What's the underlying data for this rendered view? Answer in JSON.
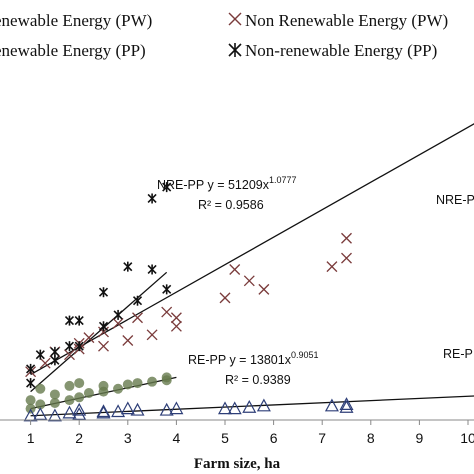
{
  "chart_data": {
    "type": "scatter",
    "xlabel": "Farm size, ha",
    "ylabel": "",
    "xlim": [
      0,
      10.2
    ],
    "ylim": [
      0,
      1250000
    ],
    "xticks": [
      "1",
      "2",
      "3",
      "4",
      "5",
      "6",
      "7",
      "8",
      "9",
      "10"
    ],
    "legend": [
      {
        "label": "Renewable Energy (PW)",
        "marker": "circle",
        "visible_label": "enewable Energy (PW)"
      },
      {
        "label": "Non Renewable Energy (PW)",
        "marker": "x"
      },
      {
        "label": "Renewable Energy (PP)",
        "marker": "triangle",
        "visible_label": "enewable Energy (PP)"
      },
      {
        "label": "Non-renewable Energy (PP)",
        "marker": "asterisk"
      }
    ],
    "annotations": {
      "nre_pp_eq": "NRE-PP  y = 51209x",
      "nre_pp_exp": "1.0777",
      "nre_pp_r2": "R² = 0.9586",
      "nre_pw_label": "NRE-P",
      "re_pp_eq": "RE-PP  y = 13801x",
      "re_pp_exp": "0.9051",
      "re_pp_r2": "R² = 0.9389",
      "re_pw_label": "RE-P"
    },
    "series": [
      {
        "name": "Non Renewable Energy (PW)",
        "marker": "x",
        "color": "#7a3b3b",
        "points": [
          [
            1.0,
            170000
          ],
          [
            1.3,
            200000
          ],
          [
            1.5,
            240000
          ],
          [
            1.8,
            230000
          ],
          [
            2.0,
            250000
          ],
          [
            2.0,
            270000
          ],
          [
            2.2,
            290000
          ],
          [
            2.5,
            260000
          ],
          [
            2.5,
            310000
          ],
          [
            2.8,
            340000
          ],
          [
            3.0,
            280000
          ],
          [
            3.2,
            360000
          ],
          [
            3.5,
            300000
          ],
          [
            3.8,
            380000
          ],
          [
            4.0,
            360000
          ],
          [
            4.0,
            330000
          ],
          [
            5.0,
            430000
          ],
          [
            5.2,
            530000
          ],
          [
            5.5,
            490000
          ],
          [
            5.8,
            460000
          ],
          [
            7.2,
            540000
          ],
          [
            7.5,
            570000
          ],
          [
            7.5,
            640000
          ]
        ]
      },
      {
        "name": "Non-renewable Energy (PP)",
        "marker": "asterisk",
        "color": "#111111",
        "points": [
          [
            1.0,
            130000
          ],
          [
            1.0,
            180000
          ],
          [
            1.2,
            230000
          ],
          [
            1.5,
            210000
          ],
          [
            1.5,
            240000
          ],
          [
            1.8,
            260000
          ],
          [
            1.8,
            350000
          ],
          [
            2.0,
            350000
          ],
          [
            2.0,
            260000
          ],
          [
            2.5,
            330000
          ],
          [
            2.5,
            450000
          ],
          [
            2.8,
            370000
          ],
          [
            3.0,
            540000
          ],
          [
            3.2,
            420000
          ],
          [
            3.5,
            530000
          ],
          [
            3.5,
            780000
          ],
          [
            3.8,
            820000
          ],
          [
            3.8,
            460000
          ]
        ]
      },
      {
        "name": "Renewable Energy (PW)",
        "marker": "circle",
        "color": "#667a4e",
        "points": [
          [
            1.0,
            40000
          ],
          [
            1.0,
            70000
          ],
          [
            1.2,
            55000
          ],
          [
            1.2,
            110000
          ],
          [
            1.5,
            60000
          ],
          [
            1.5,
            90000
          ],
          [
            1.8,
            70000
          ],
          [
            1.8,
            120000
          ],
          [
            2.0,
            80000
          ],
          [
            2.0,
            130000
          ],
          [
            2.2,
            95000
          ],
          [
            2.5,
            100000
          ],
          [
            2.5,
            120000
          ],
          [
            2.8,
            110000
          ],
          [
            3.0,
            125000
          ],
          [
            3.2,
            130000
          ],
          [
            3.5,
            135000
          ],
          [
            3.8,
            140000
          ],
          [
            3.8,
            150000
          ]
        ]
      },
      {
        "name": "Renewable Energy (PP)",
        "marker": "triangle",
        "color": "#2e3f78",
        "points": [
          [
            1.0,
            15000
          ],
          [
            1.2,
            20000
          ],
          [
            1.5,
            15000
          ],
          [
            1.8,
            25000
          ],
          [
            2.0,
            20000
          ],
          [
            2.0,
            35000
          ],
          [
            2.5,
            25000
          ],
          [
            2.5,
            30000
          ],
          [
            2.8,
            30000
          ],
          [
            3.0,
            40000
          ],
          [
            3.2,
            35000
          ],
          [
            3.8,
            35000
          ],
          [
            4.0,
            40000
          ],
          [
            5.0,
            40000
          ],
          [
            5.2,
            40000
          ],
          [
            5.5,
            45000
          ],
          [
            5.8,
            50000
          ],
          [
            7.2,
            50000
          ],
          [
            7.5,
            45000
          ],
          [
            7.5,
            55000
          ]
        ]
      }
    ],
    "trendlines": [
      {
        "name": "NRE-PP",
        "points": [
          [
            1.0,
            100000
          ],
          [
            3.8,
            520000
          ]
        ]
      },
      {
        "name": "NRE-PW",
        "points": [
          [
            1.0,
            160000
          ],
          [
            10.2,
            1050000
          ]
        ]
      },
      {
        "name": "RE-PW",
        "points": [
          [
            1.0,
            40000
          ],
          [
            4.0,
            150000
          ]
        ]
      },
      {
        "name": "RE-PP",
        "points": [
          [
            1.0,
            15000
          ],
          [
            10.2,
            85000
          ]
        ]
      }
    ]
  }
}
